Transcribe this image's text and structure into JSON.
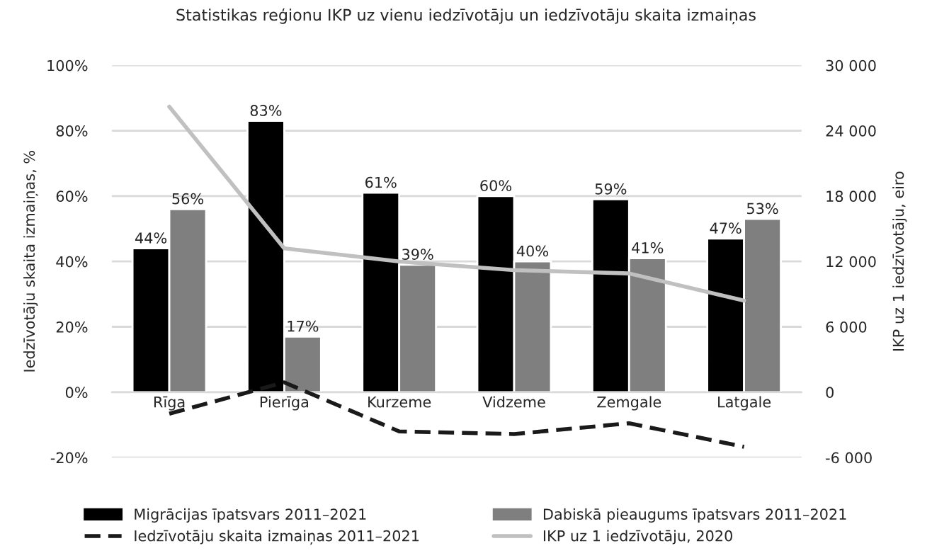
{
  "chart_data": {
    "type": "bar",
    "title": "Statistikas reģionu IKP uz vienu iedzīvotāju un iedzīvotāju skaita izmaiņas",
    "ylabel": "Iedzīvotāju skaita izmaiņas, %",
    "y2label": "IKP uz 1 iedzīvotāju, eiro",
    "categories": [
      "Rīga",
      "Pierīga",
      "Kurzeme",
      "Vidzeme",
      "Zemgale",
      "Latgale"
    ],
    "series": [
      {
        "name": "Migrācijas īpatsvars 2011–2021",
        "color": "#000000",
        "values": [
          44,
          83,
          61,
          60,
          59,
          47
        ],
        "value_labels": [
          "44%",
          "83%",
          "61%",
          "60%",
          "59%",
          "47%"
        ]
      },
      {
        "name": "Dabiskā pieaugums īpatsvars 2011–2021",
        "color": "#7f7f7f",
        "values": [
          56,
          17,
          39,
          40,
          41,
          53
        ],
        "value_labels": [
          "56%",
          "17%",
          "39%",
          "40%",
          "41%",
          "53%"
        ]
      },
      {
        "name": "Iedzīvotāju skaita izmaiņas 2011–2021",
        "type": "line",
        "color": "#1a1a1a",
        "line_style": "dashed",
        "values": [
          -6.6,
          3,
          -12,
          -12.8,
          -9.5,
          -16.7
        ]
      },
      {
        "name": "IKP uz 1 iedzīvotāju, 2020",
        "type": "line",
        "axis": "y2",
        "color": "#c0c0c0",
        "line_style": "solid",
        "values": [
          26200,
          13200,
          12000,
          11200,
          10900,
          8400
        ]
      }
    ],
    "ylim": [
      -20,
      100
    ],
    "yticks": [
      {
        "value": -20,
        "label": "-20%"
      },
      {
        "value": 0,
        "label": "0%"
      },
      {
        "value": 20,
        "label": "20%"
      },
      {
        "value": 40,
        "label": "40%"
      },
      {
        "value": 60,
        "label": "60%"
      },
      {
        "value": 80,
        "label": "80%"
      },
      {
        "value": 100,
        "label": "100%"
      }
    ],
    "y2lim": [
      -6000,
      30000
    ],
    "y2ticks": [
      {
        "value": -6000,
        "label": "-6 000"
      },
      {
        "value": 0,
        "label": "0"
      },
      {
        "value": 6000,
        "label": "6 000"
      },
      {
        "value": 12000,
        "label": "12 000"
      },
      {
        "value": 18000,
        "label": "18 000"
      },
      {
        "value": 24000,
        "label": "24 000"
      },
      {
        "value": 30000,
        "label": "30 000"
      }
    ],
    "grid": "y",
    "legend": "bottom"
  }
}
